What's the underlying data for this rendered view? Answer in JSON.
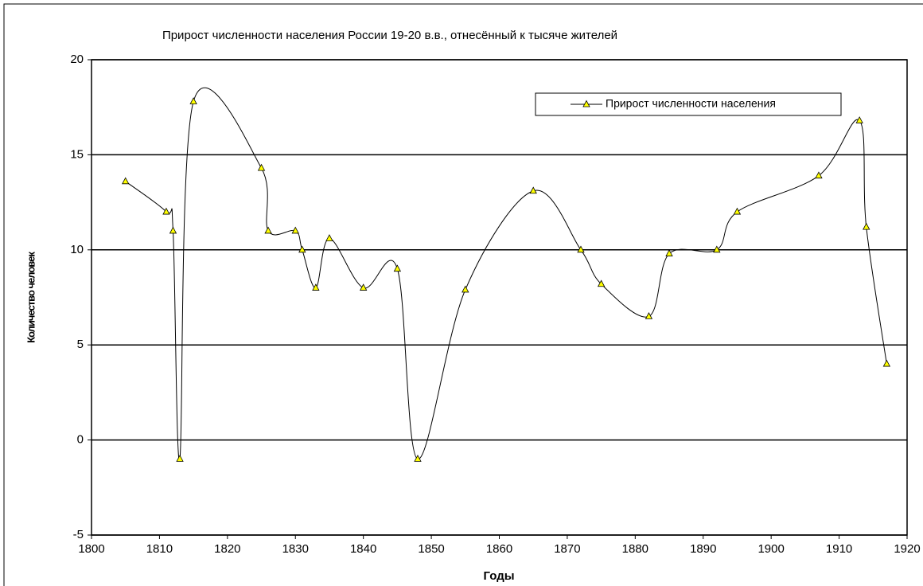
{
  "chart_data": {
    "type": "line",
    "title": "Прирост численности населения России 19-20 в.в., отнесённый к тысяче жителей",
    "x_label": "Годы",
    "y_label": "Количество человек",
    "x": [
      1805,
      1811,
      1812,
      1813,
      1815,
      1825,
      1826,
      1830,
      1831,
      1833,
      1835,
      1840,
      1845,
      1848,
      1855,
      1865,
      1872,
      1875,
      1882,
      1885,
      1892,
      1895,
      1907,
      1913,
      1914,
      1917
    ],
    "series": [
      {
        "name": "Прирост численности населения",
        "color": "#000000",
        "marker_color": "#ffff00",
        "values": [
          13.6,
          12,
          11,
          -1,
          17.8,
          14.3,
          11,
          11,
          10,
          8,
          10.6,
          8,
          9,
          -1,
          7.9,
          13.1,
          10,
          8.2,
          6.5,
          9.8,
          10,
          12,
          13.9,
          16.8,
          11.2,
          4
        ]
      }
    ],
    "xlim": [
      1800,
      1920
    ],
    "xticks": [
      1800,
      1810,
      1820,
      1830,
      1840,
      1850,
      1860,
      1870,
      1880,
      1890,
      1900,
      1910,
      1920
    ],
    "ylim": [
      -5,
      20
    ],
    "yticks": [
      -5,
      0,
      5,
      10,
      15,
      20
    ],
    "grid": true,
    "legend": "top-right",
    "smooth": true
  }
}
